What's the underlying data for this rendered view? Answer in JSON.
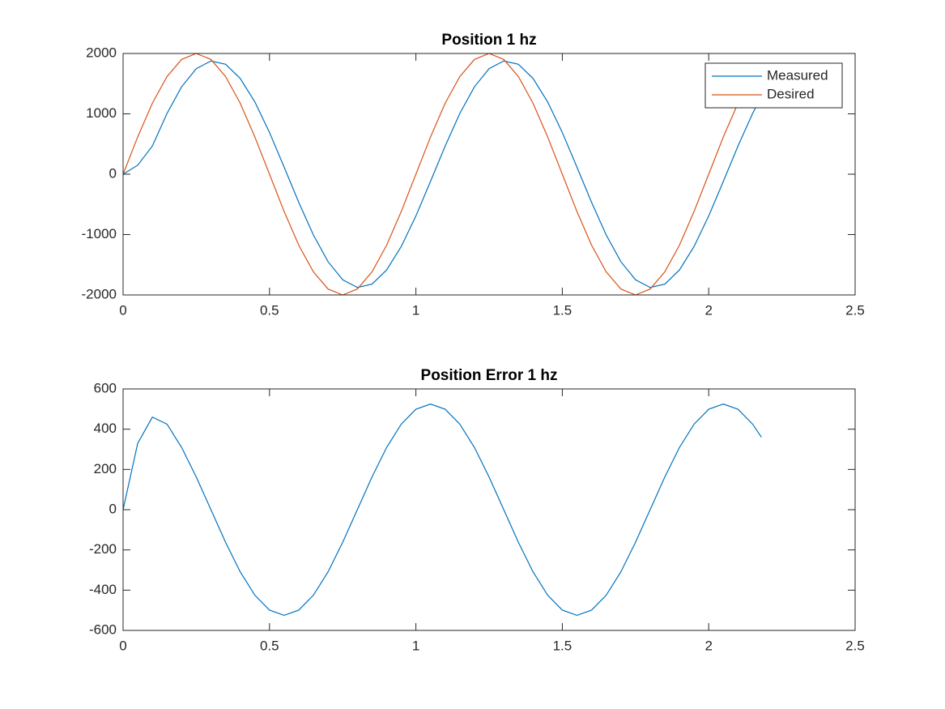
{
  "chart_data": [
    {
      "type": "line",
      "title": "Position 1 hz",
      "x": [
        0,
        0.05,
        0.1,
        0.15,
        0.2,
        0.25,
        0.3,
        0.35,
        0.4,
        0.45,
        0.5,
        0.55,
        0.6,
        0.65,
        0.7,
        0.75,
        0.8,
        0.85,
        0.9,
        0.95,
        1,
        1.05,
        1.1,
        1.15,
        1.2,
        1.25,
        1.3,
        1.35,
        1.4,
        1.45,
        1.5,
        1.55,
        1.6,
        1.65,
        1.7,
        1.75,
        1.8,
        1.85,
        1.9,
        1.95,
        2,
        2.05,
        2.1,
        2.15,
        2.18
      ],
      "series": [
        {
          "name": "Measured",
          "color": "#0072bd",
          "values": [
            0,
            150,
            467,
            1007,
            1449,
            1748,
            1876,
            1821,
            1587,
            1198,
            692,
            118,
            -467,
            -1007,
            -1449,
            -1748,
            -1876,
            -1821,
            -1587,
            -1198,
            -692,
            -118,
            467,
            1007,
            1449,
            1748,
            1876,
            1821,
            1587,
            1198,
            692,
            118,
            -467,
            -1007,
            -1449,
            -1748,
            -1876,
            -1821,
            -1587,
            -1198,
            -692,
            -118,
            467,
            1007,
            1288
          ]
        },
        {
          "name": "Desired",
          "color": "#d95319",
          "values": [
            0,
            618,
            1176,
            1618,
            1902,
            2000,
            1902,
            1618,
            1176,
            618,
            0,
            -618,
            -1176,
            -1618,
            -1902,
            -2000,
            -1902,
            -1618,
            -1176,
            -618,
            0,
            618,
            1176,
            1618,
            1902,
            2000,
            1902,
            1618,
            1176,
            618,
            0,
            -618,
            -1176,
            -1618,
            -1902,
            -2000,
            -1902,
            -1618,
            -1176,
            -618,
            0,
            618,
            1176,
            1618,
            1810
          ]
        }
      ],
      "xlim": [
        0,
        2.5
      ],
      "xticks": [
        0,
        0.5,
        1,
        1.5,
        2,
        2.5
      ],
      "ylim": [
        -2000,
        2000
      ],
      "yticks": [
        -2000,
        -1000,
        0,
        1000,
        2000
      ],
      "legend": "northeast"
    },
    {
      "type": "line",
      "title": "Position Error 1 hz",
      "x": [
        0,
        0.05,
        0.1,
        0.15,
        0.2,
        0.25,
        0.3,
        0.35,
        0.4,
        0.45,
        0.5,
        0.55,
        0.6,
        0.65,
        0.7,
        0.75,
        0.8,
        0.85,
        0.9,
        0.95,
        1,
        1.05,
        1.1,
        1.15,
        1.2,
        1.25,
        1.3,
        1.35,
        1.4,
        1.45,
        1.5,
        1.55,
        1.6,
        1.65,
        1.7,
        1.75,
        1.8,
        1.85,
        1.9,
        1.95,
        2,
        2.05,
        2.1,
        2.15,
        2.18
      ],
      "series": [
        {
          "color": "#0072bd",
          "values": [
            0,
            330,
            460,
            425,
            309,
            162,
            0,
            -162,
            -309,
            -425,
            -499,
            -525,
            -499,
            -425,
            -309,
            -162,
            0,
            162,
            309,
            425,
            499,
            525,
            499,
            425,
            309,
            162,
            0,
            -162,
            -309,
            -425,
            -499,
            -525,
            -499,
            -425,
            -309,
            -162,
            0,
            162,
            309,
            425,
            499,
            525,
            499,
            425,
            360
          ]
        }
      ],
      "xlim": [
        0,
        2.5
      ],
      "xticks": [
        0,
        0.5,
        1,
        1.5,
        2,
        2.5
      ],
      "ylim": [
        -600,
        600
      ],
      "yticks": [
        -600,
        -400,
        -200,
        0,
        200,
        400,
        600
      ]
    }
  ]
}
